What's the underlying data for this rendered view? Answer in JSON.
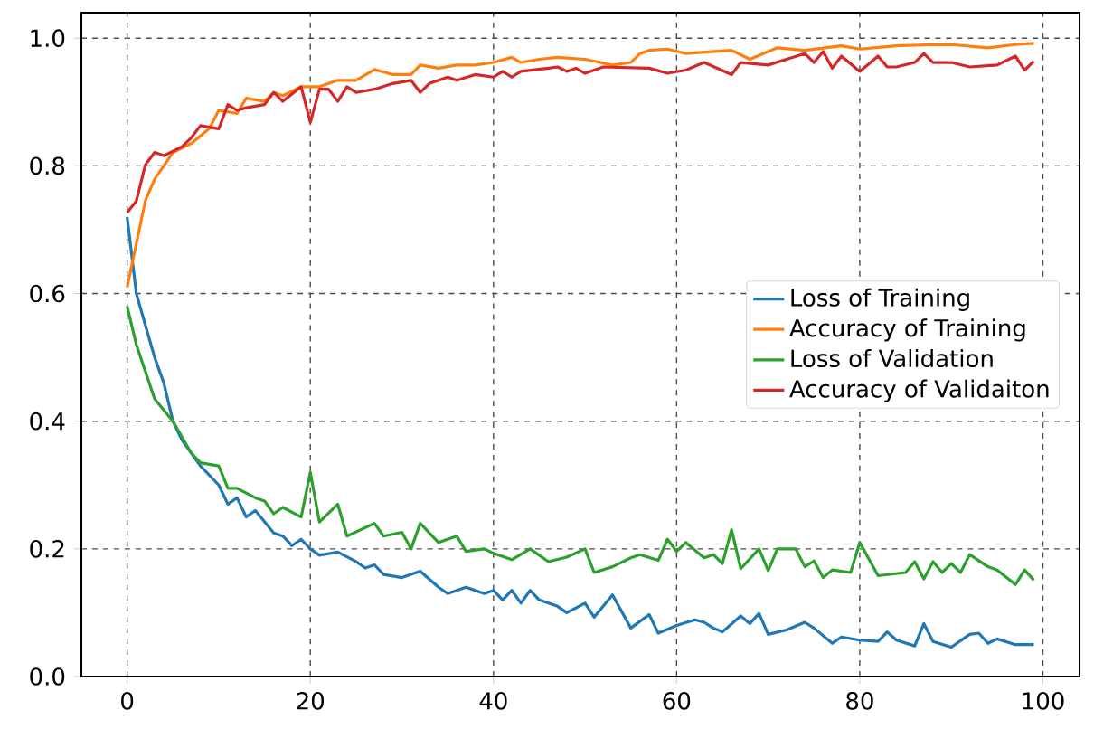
{
  "chart_data": {
    "type": "line",
    "xlim": [
      -5,
      104
    ],
    "ylim": [
      0,
      1.04
    ],
    "xticks": [
      0,
      20,
      40,
      60,
      80,
      100
    ],
    "yticks": [
      {
        "value": 0,
        "label": "0.0"
      },
      {
        "value": 0.2,
        "label": "0.2"
      },
      {
        "value": 0.4,
        "label": "0.4"
      },
      {
        "value": 0.6,
        "label": "0.6"
      },
      {
        "value": 0.8,
        "label": "0.8"
      },
      {
        "value": 1,
        "label": "1.0"
      }
    ],
    "grid": true,
    "legend": "right",
    "line_style": "solid",
    "marker": "none",
    "series": [
      {
        "name": "Loss of Training",
        "color": "#1f77b4",
        "x": [
          0,
          1,
          3,
          4,
          5,
          6,
          8,
          10,
          11,
          12,
          13,
          14,
          16,
          17,
          18,
          19,
          20,
          21,
          23,
          25,
          26,
          27,
          28,
          30,
          32,
          34,
          35,
          37,
          38,
          39,
          40,
          41,
          42,
          43,
          44,
          45,
          47,
          48,
          50,
          51,
          53,
          55,
          57,
          58,
          60,
          62,
          63,
          64,
          65,
          67,
          68,
          69,
          70,
          72,
          74,
          75,
          77,
          78,
          80,
          82,
          83,
          84,
          86,
          87,
          88,
          90,
          92,
          93,
          94,
          95,
          97,
          99
        ],
        "values": [
          0.72,
          0.6,
          0.5,
          0.46,
          0.4,
          0.37,
          0.33,
          0.3,
          0.27,
          0.28,
          0.25,
          0.26,
          0.225,
          0.22,
          0.205,
          0.215,
          0.2,
          0.19,
          0.195,
          0.18,
          0.17,
          0.175,
          0.16,
          0.155,
          0.165,
          0.14,
          0.13,
          0.14,
          0.135,
          0.13,
          0.135,
          0.12,
          0.135,
          0.115,
          0.135,
          0.12,
          0.11,
          0.1,
          0.115,
          0.093,
          0.128,
          0.076,
          0.097,
          0.068,
          0.08,
          0.089,
          0.085,
          0.076,
          0.07,
          0.095,
          0.083,
          0.099,
          0.066,
          0.073,
          0.085,
          0.076,
          0.052,
          0.062,
          0.057,
          0.055,
          0.07,
          0.057,
          0.048,
          0.083,
          0.055,
          0.046,
          0.066,
          0.068,
          0.052,
          0.059,
          0.05,
          0.05
        ]
      },
      {
        "name": "Accuracy of Training",
        "color": "#ff7f0e",
        "x": [
          0,
          2,
          3,
          5,
          7,
          9,
          10,
          12,
          13,
          15,
          16,
          17,
          19,
          21,
          23,
          25,
          27,
          29,
          31,
          32,
          34,
          36,
          38,
          40,
          42,
          43,
          45,
          47,
          50,
          53,
          55,
          56,
          57,
          59,
          61,
          66,
          68,
          71,
          74,
          78,
          80,
          84,
          88,
          90,
          94,
          97,
          99
        ],
        "values": [
          0.61,
          0.746,
          0.779,
          0.821,
          0.835,
          0.859,
          0.887,
          0.882,
          0.906,
          0.901,
          0.915,
          0.91,
          0.924,
          0.924,
          0.934,
          0.934,
          0.951,
          0.943,
          0.943,
          0.958,
          0.953,
          0.958,
          0.958,
          0.962,
          0.97,
          0.962,
          0.967,
          0.97,
          0.967,
          0.958,
          0.962,
          0.976,
          0.981,
          0.983,
          0.976,
          0.981,
          0.967,
          0.985,
          0.981,
          0.988,
          0.983,
          0.988,
          0.99,
          0.99,
          0.985,
          0.99,
          0.992
        ]
      },
      {
        "name": "Loss of Validation",
        "color": "#2ca02c",
        "x": [
          0,
          1,
          3,
          5,
          7,
          8,
          10,
          11,
          12,
          14,
          15,
          16,
          17,
          19,
          20,
          21,
          23,
          24,
          27,
          28,
          30,
          31,
          32,
          34,
          36,
          37,
          39,
          40,
          42,
          44,
          46,
          48,
          50,
          51,
          53,
          55,
          56,
          58,
          59,
          60,
          61,
          63,
          64,
          65,
          66,
          67,
          69,
          70,
          71,
          73,
          74,
          75,
          76,
          77,
          79,
          80,
          82,
          85,
          86,
          87,
          88,
          89,
          90,
          91,
          92,
          94,
          95,
          97,
          98,
          99
        ],
        "values": [
          0.58,
          0.52,
          0.435,
          0.4,
          0.35,
          0.335,
          0.33,
          0.295,
          0.295,
          0.28,
          0.275,
          0.255,
          0.265,
          0.25,
          0.32,
          0.242,
          0.27,
          0.22,
          0.24,
          0.22,
          0.226,
          0.2,
          0.24,
          0.21,
          0.22,
          0.196,
          0.2,
          0.193,
          0.183,
          0.2,
          0.18,
          0.187,
          0.2,
          0.163,
          0.172,
          0.186,
          0.191,
          0.182,
          0.215,
          0.196,
          0.21,
          0.186,
          0.191,
          0.177,
          0.23,
          0.169,
          0.2,
          0.166,
          0.2,
          0.2,
          0.172,
          0.181,
          0.155,
          0.167,
          0.163,
          0.21,
          0.158,
          0.163,
          0.18,
          0.153,
          0.18,
          0.163,
          0.177,
          0.163,
          0.191,
          0.172,
          0.167,
          0.144,
          0.167,
          0.151
        ]
      },
      {
        "name": "Accuracy of Validaiton",
        "color": "#d62728",
        "x": [
          0,
          1,
          2,
          3,
          4,
          6,
          7,
          8,
          10,
          11,
          12,
          13,
          15,
          16,
          17,
          19,
          20,
          21,
          22,
          23,
          24,
          25,
          27,
          29,
          31,
          32,
          33,
          35,
          36,
          38,
          40,
          41,
          42,
          43,
          46,
          47,
          48,
          49,
          50,
          52,
          57,
          59,
          61,
          63,
          66,
          67,
          70,
          72,
          74,
          75,
          76,
          77,
          78,
          80,
          82,
          83,
          84,
          86,
          87,
          88,
          90,
          92,
          95,
          97,
          98,
          99
        ],
        "values": [
          0.727,
          0.745,
          0.802,
          0.821,
          0.816,
          0.83,
          0.844,
          0.863,
          0.858,
          0.896,
          0.887,
          0.891,
          0.896,
          0.915,
          0.901,
          0.924,
          0.868,
          0.92,
          0.92,
          0.901,
          0.924,
          0.915,
          0.92,
          0.929,
          0.934,
          0.915,
          0.929,
          0.939,
          0.934,
          0.943,
          0.939,
          0.948,
          0.939,
          0.948,
          0.953,
          0.955,
          0.948,
          0.953,
          0.945,
          0.955,
          0.953,
          0.945,
          0.95,
          0.962,
          0.943,
          0.962,
          0.958,
          0.967,
          0.976,
          0.962,
          0.979,
          0.953,
          0.972,
          0.948,
          0.972,
          0.955,
          0.955,
          0.962,
          0.976,
          0.962,
          0.962,
          0.955,
          0.958,
          0.972,
          0.95,
          0.964
        ]
      }
    ]
  }
}
